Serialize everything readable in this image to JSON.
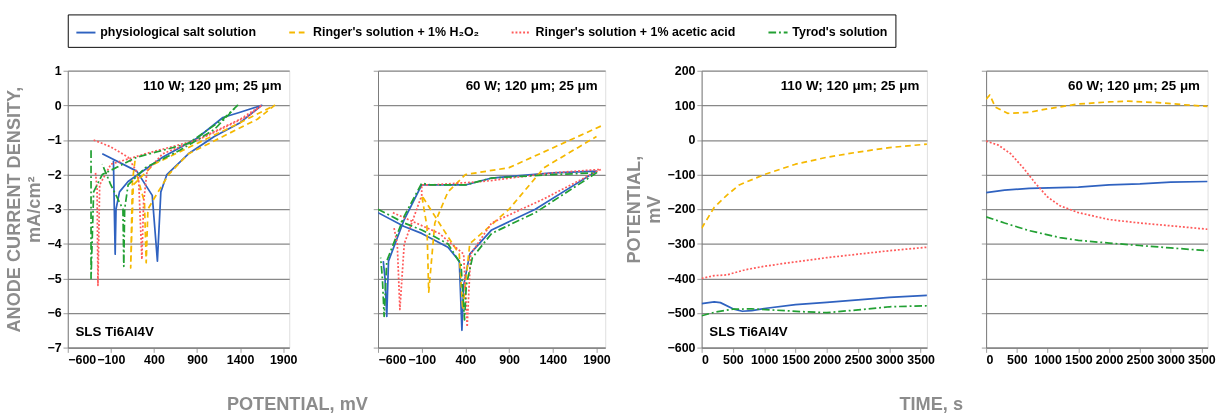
{
  "chart_data": [
    {
      "type": "line",
      "xlabel": "POTENTIAL, mV",
      "ylabel": "ANODE CURRENT DENSITY, mA/cm²",
      "xlim": [
        -600,
        1970
      ],
      "ylim": [
        -7,
        1
      ],
      "xticks": [
        -600,
        -100,
        400,
        900,
        1400,
        1900
      ],
      "yticks": [
        -7,
        -6,
        -5,
        -4,
        -3,
        -2,
        -1,
        0,
        1
      ],
      "grid": "y",
      "legend": "top",
      "annotations": [
        "110 W; 120 μm; 25 μm",
        "SLS Ti6Al4V"
      ],
      "series": [
        {
          "name": "physiological salt solution",
          "color": "#2f62c0",
          "line_style": "solid",
          "x": [
            -200,
            200,
            380,
            440,
            480,
            550,
            800,
            1100,
            1400,
            1650,
            1400,
            1200,
            900,
            500,
            100,
            0,
            -40,
            -50,
            -60,
            -70
          ],
          "values": [
            -1.4,
            -1.9,
            -2.6,
            -4.5,
            -2.5,
            -2.0,
            -1.4,
            -0.9,
            -0.5,
            0,
            -0.2,
            -0.35,
            -0.95,
            -1.5,
            -2.2,
            -2.5,
            -3,
            -4.3,
            -3,
            -1.6
          ]
        },
        {
          "name": "Ringer's solution + 1% H₂O₂",
          "color": "#f5b800",
          "line_style": "dashed",
          "x": [
            180,
            150,
            130,
            160,
            400,
            900,
            1400,
            1800,
            1600,
            1200,
            800,
            570,
            400,
            330,
            310,
            290,
            200
          ],
          "values": [
            -1.6,
            -2.2,
            -4.7,
            -2.3,
            -1.7,
            -1.1,
            -0.5,
            0,
            -0.4,
            -0.9,
            -1.4,
            -2.0,
            -2.7,
            -3.0,
            -4.55,
            -2.8,
            -2.0
          ]
        },
        {
          "name": "Ringer's solution + 1% acetic acid",
          "color": "#ff5a5a",
          "line_style": "dotted",
          "x": [
            -300,
            -100,
            100,
            220,
            260,
            280,
            320,
            500,
            1000,
            1500,
            1650,
            1400,
            900,
            300,
            -100,
            -230,
            -250,
            -260,
            -280
          ],
          "values": [
            -1.0,
            -1.2,
            -1.5,
            -2.0,
            -4.45,
            -2.8,
            -1.9,
            -1.4,
            -0.9,
            -0.3,
            0,
            -0.4,
            -1.0,
            -1.4,
            -1.7,
            -2.3,
            -5.2,
            -2.4,
            -1.9
          ]
        },
        {
          "name": "Tyrod's solution",
          "color": "#22a033",
          "line_style": "dashdot",
          "x": [
            -330,
            -330,
            -300,
            -200,
            200,
            800,
            1200,
            1370,
            1100,
            700,
            300,
            100,
            60,
            50,
            40,
            -100,
            -200
          ],
          "values": [
            -1.3,
            -5.0,
            -2.5,
            -2.0,
            -1.5,
            -1.1,
            -0.4,
            0,
            -0.7,
            -1.3,
            -1.8,
            -2.3,
            -3,
            -4.65,
            -3,
            -2.3,
            -1.7
          ]
        }
      ]
    },
    {
      "type": "line",
      "xlim": [
        -600,
        2000
      ],
      "ylim": [
        -7,
        1
      ],
      "xticks": [
        -600,
        -100,
        400,
        900,
        1400,
        1900
      ],
      "yticks": [
        -7,
        -6,
        -5,
        -4,
        -3,
        -2,
        -1,
        0,
        1
      ],
      "grid": "y",
      "tick_labels": "x",
      "annotations": [
        "60 W; 120 μm; 25 μm"
      ],
      "series": [
        {
          "name": "physiological salt solution",
          "color": "#2f62c0",
          "line_style": "solid",
          "x": [
            -600,
            -300,
            -100,
            200,
            330,
            360,
            380,
            450,
            700,
            1200,
            1900,
            1400,
            700,
            400,
            0,
            -100,
            -300,
            -480,
            -500,
            -520,
            -540
          ],
          "values": [
            -3.1,
            -3.5,
            -3.7,
            -4.1,
            -4.5,
            -6.5,
            -5.2,
            -4.3,
            -3.6,
            -3.0,
            -1.9,
            -1.95,
            -2.1,
            -2.3,
            -2.3,
            -2.3,
            -3.3,
            -4.5,
            -6.1,
            -5,
            -4.5
          ]
        },
        {
          "name": "Ringer's solution + 1% H₂O₂",
          "color": "#f5b800",
          "line_style": "dashed",
          "x": [
            1950,
            900,
            400,
            200,
            50,
            -20,
            -40,
            -100,
            100,
            330,
            370,
            450,
            900,
            1300,
            1700,
            1900
          ],
          "values": [
            -0.6,
            -1.8,
            -2.0,
            -2.5,
            -3.4,
            -5.4,
            -3.5,
            -2.6,
            -3.4,
            -4.3,
            -5.9,
            -4.0,
            -3.0,
            -1.8,
            -1.2,
            -0.9
          ]
        },
        {
          "name": "Ringer's solution + 1% acetic acid",
          "color": "#ff5a5a",
          "line_style": "dotted",
          "x": [
            -430,
            100,
            380,
            420,
            460,
            700,
            1300,
            1950,
            1400,
            600,
            0,
            -100,
            -100,
            -300,
            -350,
            -380,
            -420
          ],
          "values": [
            -3.1,
            -3.7,
            -4.3,
            -6.4,
            -4.3,
            -3.4,
            -2.7,
            -1.85,
            -1.95,
            -2.2,
            -2.3,
            -2.3,
            -2.6,
            -4.0,
            -5.9,
            -4.0,
            -3.5
          ]
        },
        {
          "name": "Tyrod's solution",
          "color": "#22a033",
          "line_style": "dashdot",
          "x": [
            -600,
            -300,
            -100,
            200,
            350,
            390,
            410,
            480,
            700,
            1200,
            1900,
            1400,
            700,
            400,
            0,
            -100,
            -300,
            -500,
            -530,
            -550,
            -570
          ],
          "values": [
            -3.0,
            -3.4,
            -3.6,
            -4.0,
            -4.6,
            -6.2,
            -5.2,
            -4.4,
            -3.7,
            -3.1,
            -1.95,
            -2.0,
            -2.1,
            -2.3,
            -2.3,
            -2.25,
            -3.2,
            -4.5,
            -6.1,
            -5,
            -4.4
          ]
        }
      ]
    },
    {
      "type": "line",
      "xlabel": "TIME, s",
      "ylabel": "POTENTIAL, mV",
      "xlim": [
        0,
        3600
      ],
      "ylim": [
        -600,
        200
      ],
      "xticks": [
        0,
        500,
        1000,
        1500,
        2000,
        2500,
        3000,
        3500
      ],
      "yticks": [
        -600,
        -500,
        -400,
        -300,
        -200,
        -100,
        0,
        100,
        200
      ],
      "grid": "y",
      "annotations": [
        "110 W; 120 μm; 25 μm",
        "SLS Ti6Al4V"
      ],
      "series": [
        {
          "name": "physiological salt solution",
          "color": "#2f62c0",
          "line_style": "solid",
          "x": [
            0,
            200,
            300,
            500,
            650,
            800,
            1000,
            1500,
            2000,
            2500,
            3000,
            3600
          ],
          "values": [
            -473,
            -468,
            -470,
            -488,
            -495,
            -493,
            -487,
            -476,
            -469,
            -462,
            -455,
            -449
          ]
        },
        {
          "name": "Ringer's solution + 1% H₂O₂",
          "color": "#f5b800",
          "line_style": "dashed",
          "x": [
            0,
            100,
            200,
            400,
            600,
            1000,
            1500,
            2000,
            2500,
            3000,
            3600
          ],
          "values": [
            -255,
            -225,
            -195,
            -160,
            -130,
            -100,
            -70,
            -50,
            -35,
            -22,
            -12
          ]
        },
        {
          "name": "Ringer's solution + 1% acetic acid",
          "color": "#ff5a5a",
          "line_style": "dotted",
          "x": [
            0,
            200,
            400,
            700,
            1000,
            1500,
            2000,
            2500,
            3000,
            3600
          ],
          "values": [
            -400,
            -392,
            -390,
            -375,
            -365,
            -352,
            -340,
            -330,
            -320,
            -310
          ]
        },
        {
          "name": "Tyrod's solution",
          "color": "#22a033",
          "line_style": "dashdot",
          "x": [
            0,
            200,
            500,
            800,
            1200,
            1700,
            2000,
            2500,
            3000,
            3600
          ],
          "values": [
            -508,
            -498,
            -489,
            -488,
            -492,
            -497,
            -499,
            -491,
            -482,
            -479
          ]
        }
      ]
    },
    {
      "type": "line",
      "xlim": [
        0,
        3600
      ],
      "ylim": [
        -600,
        200
      ],
      "xticks": [
        0,
        500,
        1000,
        1500,
        2000,
        2500,
        3000,
        3500
      ],
      "yticks": [
        -600,
        -500,
        -400,
        -300,
        -200,
        -100,
        0,
        100,
        200
      ],
      "grid": "y",
      "tick_labels": "x",
      "annotations": [
        "60 W; 120 μm; 25 μm"
      ],
      "series": [
        {
          "name": "physiological salt solution",
          "color": "#2f62c0",
          "line_style": "solid",
          "x": [
            0,
            300,
            700,
            1500,
            2000,
            2500,
            3000,
            3600
          ],
          "values": [
            -152,
            -145,
            -140,
            -136,
            -130,
            -127,
            -122,
            -120
          ]
        },
        {
          "name": "Ringer's solution + 1% H₂O₂",
          "color": "#f5b800",
          "line_style": "dashed",
          "x": [
            0,
            60,
            150,
            350,
            700,
            1000,
            1500,
            2000,
            2300,
            2800,
            3200,
            3600
          ],
          "values": [
            118,
            130,
            95,
            77,
            80,
            90,
            104,
            110,
            112,
            108,
            102,
            97
          ]
        },
        {
          "name": "Ringer's solution + 1% acetic acid",
          "color": "#ff5a5a",
          "line_style": "dotted",
          "x": [
            0,
            200,
            400,
            600,
            800,
            1000,
            1200,
            1500,
            2000,
            2500,
            3000,
            3600
          ],
          "values": [
            -3,
            -15,
            -40,
            -80,
            -125,
            -165,
            -190,
            -210,
            -230,
            -240,
            -248,
            -258
          ]
        },
        {
          "name": "Tyrod's solution",
          "color": "#22a033",
          "line_style": "dashdot",
          "x": [
            0,
            300,
            700,
            1200,
            1500,
            2000,
            2500,
            3000,
            3600
          ],
          "values": [
            -222,
            -240,
            -262,
            -282,
            -290,
            -298,
            -305,
            -312,
            -320
          ]
        }
      ]
    }
  ]
}
